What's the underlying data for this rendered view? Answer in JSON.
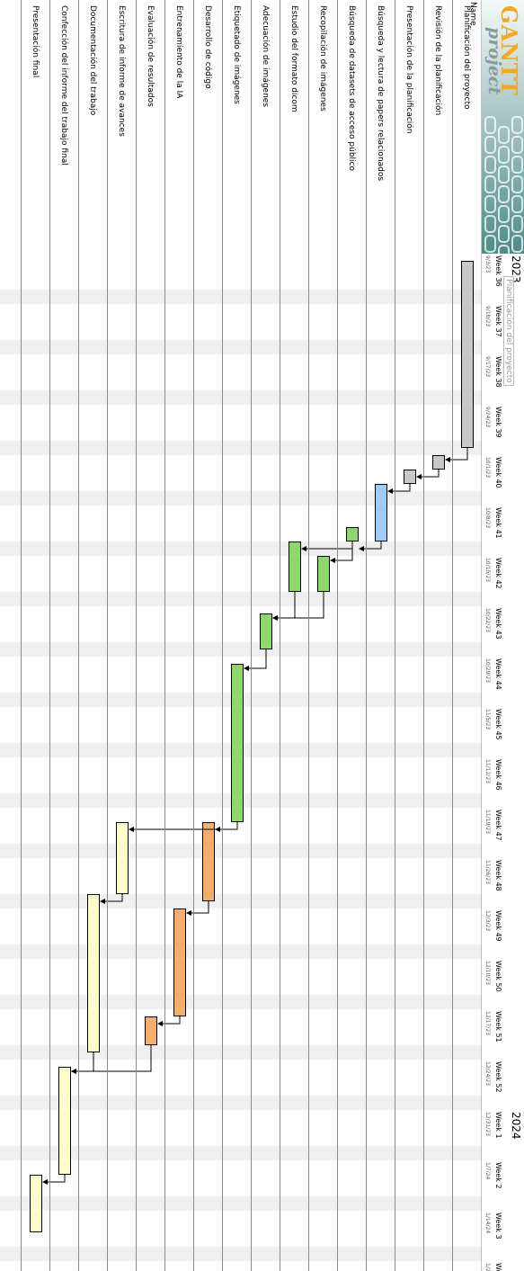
{
  "chart_data": {
    "type": "gantt",
    "name_header": "Name",
    "logo": {
      "word": "GANTT",
      "sub": "project"
    },
    "years": [
      {
        "label": "2023",
        "week_index": 0
      },
      {
        "label": "2024",
        "week_index": 17
      }
    ],
    "tooltip": {
      "text": "Planificación del proyecto",
      "week_index": 0.45
    },
    "weeks": [
      {
        "label": "Week 36",
        "date": "9/3/23"
      },
      {
        "label": "Week 37",
        "date": "9/10/23"
      },
      {
        "label": "Week 38",
        "date": "9/17/23"
      },
      {
        "label": "Week 39",
        "date": "9/24/23"
      },
      {
        "label": "Week 40",
        "date": "10/1/23"
      },
      {
        "label": "Week 41",
        "date": "10/8/23"
      },
      {
        "label": "Week 42",
        "date": "10/15/23"
      },
      {
        "label": "Week 43",
        "date": "10/22/23"
      },
      {
        "label": "Week 44",
        "date": "10/29/23"
      },
      {
        "label": "Week 45",
        "date": "11/5/23"
      },
      {
        "label": "Week 46",
        "date": "11/12/23"
      },
      {
        "label": "Week 47",
        "date": "11/19/23"
      },
      {
        "label": "Week 48",
        "date": "11/26/23"
      },
      {
        "label": "Week 49",
        "date": "12/3/23"
      },
      {
        "label": "Week 50",
        "date": "12/10/23"
      },
      {
        "label": "Week 51",
        "date": "12/17/23"
      },
      {
        "label": "Week 52",
        "date": "12/24/23"
      },
      {
        "label": "Week 1",
        "date": "12/31/23"
      },
      {
        "label": "Week 2",
        "date": "1/7/24"
      },
      {
        "label": "Week 3",
        "date": "1/14/24"
      },
      {
        "label": "We",
        "date": "1/2"
      }
    ],
    "tasks": [
      {
        "name": "Planificación del proyecto",
        "start": "2023-09-04",
        "end": "2023-09-30",
        "color": "#c8c8c8"
      },
      {
        "name": "Revisión de la planificación",
        "start": "2023-10-01",
        "end": "2023-10-03",
        "color": "#c8c8c8"
      },
      {
        "name": "Presentación de la planificación",
        "start": "2023-10-03",
        "end": "2023-10-05",
        "color": "#c8c8c8"
      },
      {
        "name": "Búsqueda y lectura de papers relacionados",
        "start": "2023-10-05",
        "end": "2023-10-13",
        "color": "#9ecbf7"
      },
      {
        "name": "Búsqueda de datasets de acceso público",
        "start": "2023-10-11",
        "end": "2023-10-13",
        "color": "#8fd66b"
      },
      {
        "name": "Recopilación de imágenes",
        "start": "2023-10-15",
        "end": "2023-10-20",
        "color": "#8fd66b"
      },
      {
        "name": "Estudio del formato dicom",
        "start": "2023-10-13",
        "end": "2023-10-20",
        "color": "#8fd66b"
      },
      {
        "name": "Adecuación de imágenes",
        "start": "2023-10-23",
        "end": "2023-10-28",
        "color": "#8fd66b"
      },
      {
        "name": "Etiquetado de imágenes",
        "start": "2023-10-30",
        "end": "2023-11-21",
        "color": "#8fd66b"
      },
      {
        "name": "Desarrollo de código",
        "start": "2023-11-21",
        "end": "2023-12-02",
        "color": "#f5ad6e"
      },
      {
        "name": "Entrenamiento de la IA",
        "start": "2023-12-03",
        "end": "2023-12-18",
        "color": "#f5ad6e"
      },
      {
        "name": "Evaluación de resultados",
        "start": "2023-12-18",
        "end": "2023-12-22",
        "color": "#f5ad6e"
      },
      {
        "name": "Escritura de informe de avances",
        "start": "2023-11-21",
        "end": "2023-12-01",
        "color": "#ffffcc"
      },
      {
        "name": "Documentación del trabajo",
        "start": "2023-12-01",
        "end": "2023-12-23",
        "color": "#ffffcc"
      },
      {
        "name": "Confección del informe del trabajo final",
        "start": "2023-12-25",
        "end": "2024-01-09",
        "color": "#ffffcc"
      },
      {
        "name": "Presentación final",
        "start": "2024-01-09",
        "end": "2024-01-17",
        "color": "#ffffcc"
      }
    ],
    "dependencies": [
      [
        0,
        1
      ],
      [
        1,
        2
      ],
      [
        2,
        3
      ],
      [
        3,
        4
      ],
      [
        4,
        6
      ],
      [
        4,
        5
      ],
      [
        6,
        7
      ],
      [
        5,
        7
      ],
      [
        7,
        8
      ],
      [
        8,
        9
      ],
      [
        8,
        12
      ],
      [
        9,
        10
      ],
      [
        10,
        11
      ],
      [
        12,
        13
      ],
      [
        11,
        14
      ],
      [
        13,
        14
      ],
      [
        14,
        15
      ]
    ],
    "axis_start": "2023-09-03",
    "xlim": [
      "2023-09-03",
      "2024-01-23"
    ]
  }
}
